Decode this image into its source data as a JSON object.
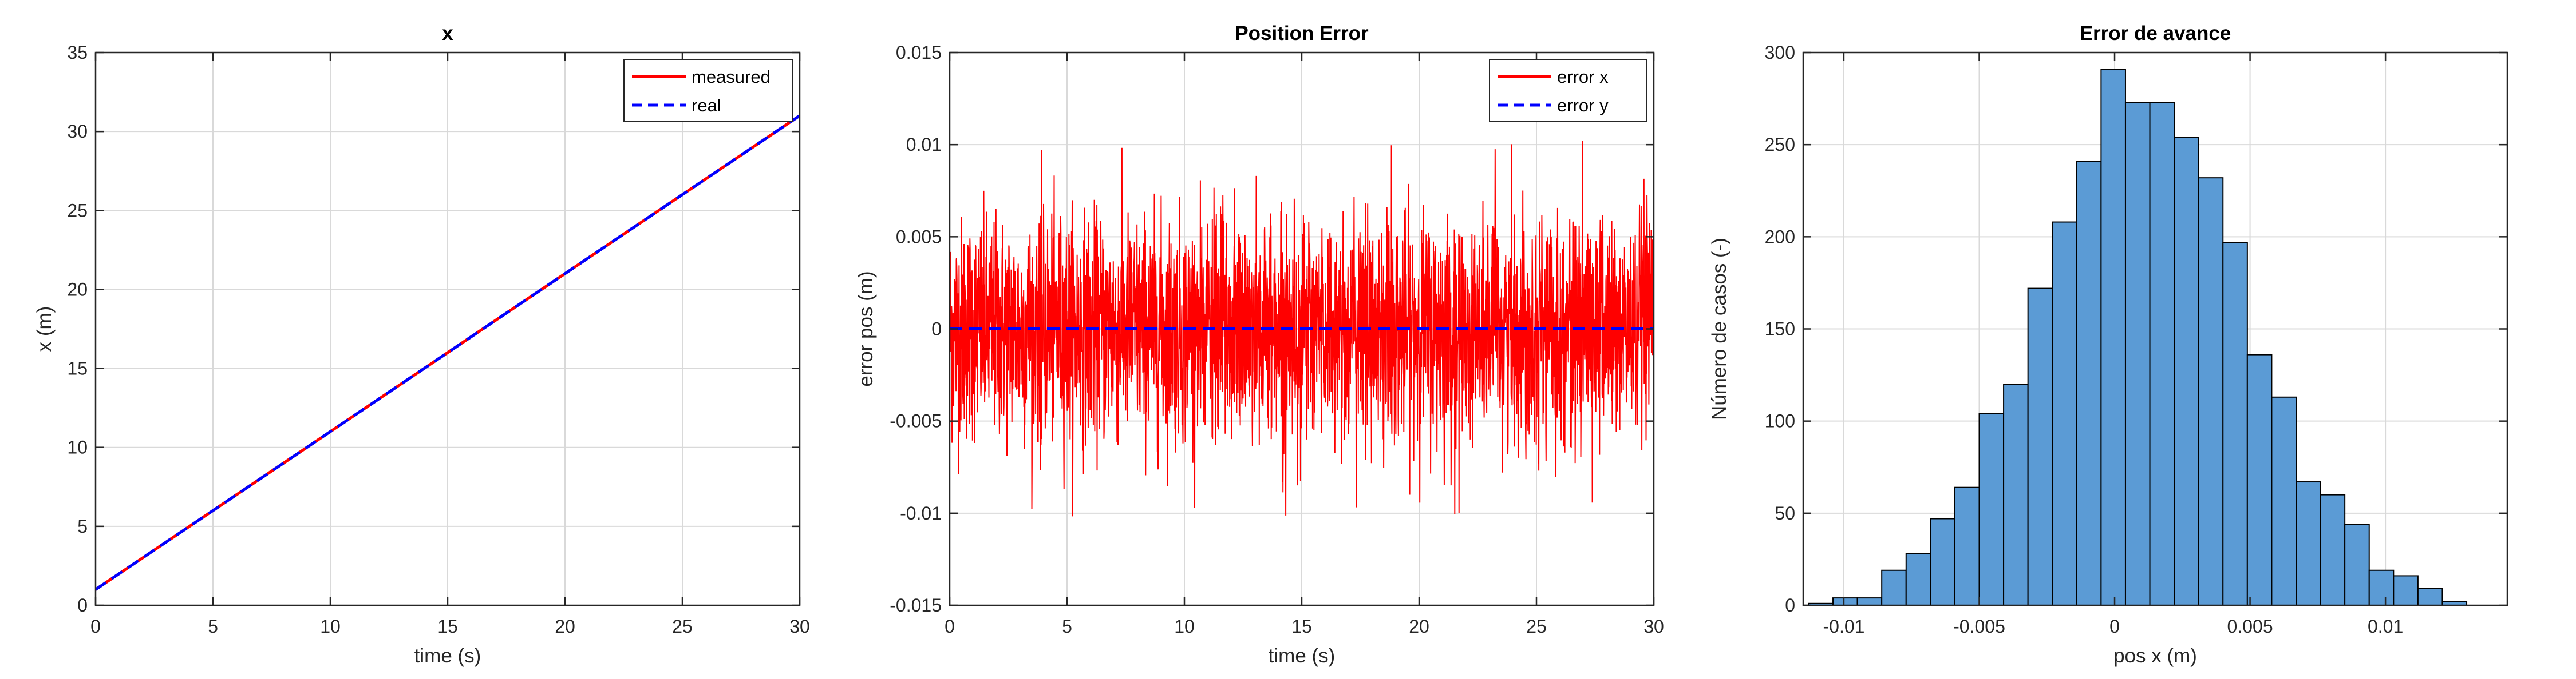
{
  "colors": {
    "measured": "#ff0000",
    "real": "#0000ff",
    "error_x": "#ff0000",
    "error_y": "#0000ff",
    "hist_fill": "#5b9bd5",
    "hist_edge": "#000000",
    "grid": "#d9d9d9",
    "axes": "#262626"
  },
  "chart_data": [
    {
      "type": "line",
      "title": "x",
      "xlabel": "time (s)",
      "ylabel": "x (m)",
      "xlim": [
        0,
        30
      ],
      "ylim": [
        0,
        35
      ],
      "xticks": [
        0,
        5,
        10,
        15,
        20,
        25,
        30
      ],
      "yticks": [
        0,
        5,
        10,
        15,
        20,
        25,
        30,
        35
      ],
      "xtick_labels": [
        "0",
        "5",
        "10",
        "15",
        "20",
        "25",
        "30"
      ],
      "ytick_labels": [
        "0",
        "5",
        "10",
        "15",
        "20",
        "25",
        "30",
        "35"
      ],
      "grid": true,
      "legend_placement": "top-right",
      "series": [
        {
          "name": "measured",
          "style": "solid",
          "x": [
            0,
            30
          ],
          "y": [
            1,
            31
          ]
        },
        {
          "name": "real",
          "style": "dashed",
          "x": [
            0,
            30
          ],
          "y": [
            1,
            31
          ]
        }
      ]
    },
    {
      "type": "line",
      "title": "Position Error",
      "xlabel": "time (s)",
      "ylabel": "error pos (m)",
      "xlim": [
        0,
        30
      ],
      "ylim": [
        -0.015,
        0.015
      ],
      "xticks": [
        0,
        5,
        10,
        15,
        20,
        25,
        30
      ],
      "yticks": [
        -0.015,
        -0.01,
        -0.005,
        0,
        0.005,
        0.01,
        0.015
      ],
      "xtick_labels": [
        "0",
        "5",
        "10",
        "15",
        "20",
        "25",
        "30"
      ],
      "ytick_labels": [
        "-0.015",
        "-0.01",
        "-0.005",
        "0",
        "0.005",
        "0.01",
        "0.015"
      ],
      "grid": true,
      "legend_placement": "top-right",
      "series": [
        {
          "name": "error x",
          "style": "solid",
          "noise": true,
          "x_range": [
            0,
            30
          ],
          "std": 0.003,
          "max": 0.0105,
          "min": -0.0102
        },
        {
          "name": "error y",
          "style": "dashed",
          "x": [
            0,
            30
          ],
          "y": [
            0,
            0
          ]
        }
      ]
    },
    {
      "type": "bar",
      "subtype": "histogram",
      "title": "Error de avance",
      "xlabel": "pos x (m)",
      "ylabel": "Número de casos (-)",
      "xlim": [
        -0.0115,
        0.0145
      ],
      "ylim": [
        0,
        300
      ],
      "xticks": [
        -0.01,
        -0.005,
        0,
        0.005,
        0.01
      ],
      "yticks": [
        0,
        50,
        100,
        150,
        200,
        250,
        300
      ],
      "xtick_labels": [
        "-0.01",
        "-0.005",
        "0",
        "0.005",
        "0.01"
      ],
      "ytick_labels": [
        "0",
        "50",
        "100",
        "150",
        "200",
        "250",
        "300"
      ],
      "grid": true,
      "bin_edges": [
        -0.0113,
        -0.0104,
        -0.0095,
        -0.0086,
        -0.0077,
        -0.0068,
        -0.0059,
        -0.005,
        -0.0041,
        -0.0032,
        -0.0023,
        -0.0014,
        -0.0005,
        0.0004,
        0.0013,
        0.0022,
        0.0031,
        0.004,
        0.0049,
        0.0058,
        0.0067,
        0.0076,
        0.0085,
        0.0094,
        0.0103,
        0.0112,
        0.0121,
        0.013
      ],
      "values": [
        1,
        4,
        4,
        19,
        28,
        47,
        64,
        104,
        120,
        172,
        208,
        241,
        291,
        273,
        273,
        254,
        232,
        197,
        136,
        113,
        67,
        60,
        44,
        19,
        16,
        9,
        2
      ]
    }
  ]
}
